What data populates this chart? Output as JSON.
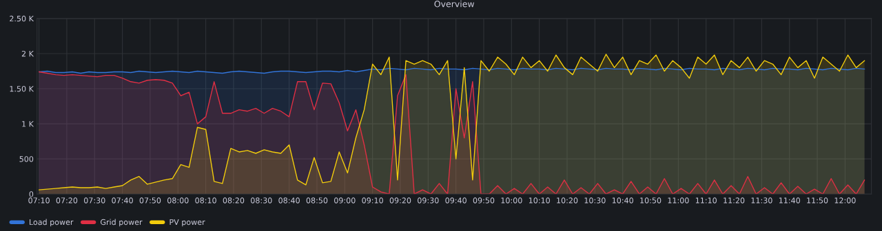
{
  "chart_data": {
    "type": "area",
    "title": "Overview",
    "x": [
      7.1667,
      7.2167,
      7.2667,
      7.3167,
      7.3667,
      7.4167,
      7.4667,
      7.5167,
      7.5667,
      7.6167,
      7.6667,
      7.7167,
      7.7667,
      7.8167,
      7.8667,
      7.9167,
      7.9667,
      8.0167,
      8.0667,
      8.1167,
      8.1667,
      8.2167,
      8.2667,
      8.3167,
      8.3667,
      8.4167,
      8.4667,
      8.5167,
      8.5667,
      8.6167,
      8.6667,
      8.7167,
      8.7667,
      8.8167,
      8.8667,
      8.9167,
      8.9667,
      9.0167,
      9.0667,
      9.1167,
      9.1667,
      9.2167,
      9.2667,
      9.3167,
      9.3667,
      9.4167,
      9.4667,
      9.5167,
      9.5667,
      9.6167,
      9.6667,
      9.7167,
      9.7667,
      9.8167,
      9.8667,
      9.9167,
      9.9667,
      10.0167,
      10.0667,
      10.1167,
      10.1667,
      10.2167,
      10.2667,
      10.3167,
      10.3667,
      10.4167,
      10.4667,
      10.5167,
      10.5667,
      10.6167,
      10.6667,
      10.7167,
      10.7667,
      10.8167,
      10.8667,
      10.9167,
      10.9667,
      11.0167,
      11.0667,
      11.1167,
      11.1667,
      11.2167,
      11.2667,
      11.3167,
      11.3667,
      11.4167,
      11.4667,
      11.5167,
      11.5667,
      11.6167,
      11.6667,
      11.7167,
      11.7667,
      11.8167,
      11.8667,
      11.9167,
      11.9667,
      12.0167,
      12.0667,
      12.1167
    ],
    "series": [
      {
        "name": "Load power",
        "color": "#3274d9",
        "values": [
          1740,
          1750,
          1730,
          1730,
          1740,
          1720,
          1740,
          1730,
          1730,
          1740,
          1740,
          1730,
          1750,
          1740,
          1730,
          1740,
          1750,
          1740,
          1730,
          1750,
          1740,
          1730,
          1720,
          1740,
          1750,
          1740,
          1730,
          1720,
          1740,
          1750,
          1750,
          1740,
          1730,
          1740,
          1750,
          1750,
          1740,
          1760,
          1740,
          1760,
          1780,
          1770,
          1790,
          1780,
          1770,
          1790,
          1780,
          1770,
          1790,
          1780,
          1780,
          1770,
          1790,
          1780,
          1770,
          1790,
          1780,
          1770,
          1790,
          1780,
          1780,
          1770,
          1790,
          1780,
          1770,
          1790,
          1780,
          1770,
          1790,
          1780,
          1780,
          1770,
          1790,
          1780,
          1770,
          1790,
          1780,
          1770,
          1790,
          1780,
          1780,
          1770,
          1790,
          1780,
          1770,
          1790,
          1780,
          1770,
          1790,
          1780,
          1780,
          1770,
          1790,
          1780,
          1770,
          1790,
          1780,
          1770,
          1790,
          1780
        ]
      },
      {
        "name": "Grid power",
        "color": "#e02f44",
        "values": [
          1740,
          1720,
          1700,
          1690,
          1700,
          1690,
          1680,
          1670,
          1690,
          1690,
          1650,
          1600,
          1580,
          1620,
          1630,
          1620,
          1580,
          1400,
          1450,
          1000,
          1100,
          1600,
          1150,
          1150,
          1200,
          1180,
          1220,
          1150,
          1220,
          1180,
          1100,
          1600,
          1600,
          1200,
          1580,
          1570,
          1300,
          900,
          1200,
          700,
          100,
          30,
          0,
          1400,
          1700,
          0,
          60,
          0,
          150,
          0,
          1500,
          800,
          1600,
          0,
          0,
          120,
          0,
          80,
          0,
          150,
          0,
          100,
          0,
          200,
          0,
          90,
          0,
          150,
          0,
          60,
          0,
          180,
          0,
          100,
          0,
          220,
          0,
          80,
          0,
          150,
          0,
          200,
          0,
          120,
          0,
          250,
          0,
          90,
          0,
          160,
          0,
          110,
          0,
          70,
          0,
          220,
          0,
          130,
          0,
          200
        ]
      },
      {
        "name": "PV power",
        "color": "#f2cc0c",
        "values": [
          60,
          70,
          80,
          90,
          100,
          90,
          90,
          100,
          80,
          100,
          120,
          200,
          250,
          140,
          170,
          200,
          220,
          420,
          380,
          950,
          920,
          180,
          150,
          650,
          600,
          620,
          580,
          630,
          600,
          580,
          700,
          200,
          130,
          520,
          160,
          180,
          600,
          300,
          800,
          1200,
          1850,
          1700,
          1950,
          200,
          1900,
          1850,
          1900,
          1850,
          1700,
          1900,
          500,
          1800,
          200,
          1900,
          1750,
          1950,
          1850,
          1700,
          1950,
          1800,
          1900,
          1750,
          1980,
          1800,
          1700,
          1950,
          1850,
          1750,
          1990,
          1800,
          1950,
          1700,
          1900,
          1850,
          1980,
          1750,
          1900,
          1800,
          1650,
          1950,
          1850,
          1980,
          1700,
          1900,
          1800,
          1950,
          1750,
          1900,
          1850,
          1700,
          1950,
          1800,
          1900,
          1650,
          1950,
          1850,
          1750,
          1980,
          1800,
          1900
        ]
      }
    ],
    "xlim": [
      7.155,
      12.158
    ],
    "xticks": [
      {
        "value": 7.1667,
        "label": "07:10"
      },
      {
        "value": 7.3333,
        "label": "07:20"
      },
      {
        "value": 7.5,
        "label": "07:30"
      },
      {
        "value": 7.6667,
        "label": "07:40"
      },
      {
        "value": 7.8333,
        "label": "07:50"
      },
      {
        "value": 8,
        "label": "08:00"
      },
      {
        "value": 8.1667,
        "label": "08:10"
      },
      {
        "value": 8.3333,
        "label": "08:20"
      },
      {
        "value": 8.5,
        "label": "08:30"
      },
      {
        "value": 8.6667,
        "label": "08:40"
      },
      {
        "value": 8.8333,
        "label": "08:50"
      },
      {
        "value": 9,
        "label": "09:00"
      },
      {
        "value": 9.1667,
        "label": "09:10"
      },
      {
        "value": 9.3333,
        "label": "09:20"
      },
      {
        "value": 9.5,
        "label": "09:30"
      },
      {
        "value": 9.6667,
        "label": "09:40"
      },
      {
        "value": 9.8333,
        "label": "09:50"
      },
      {
        "value": 10,
        "label": "10:00"
      },
      {
        "value": 10.1667,
        "label": "10:10"
      },
      {
        "value": 10.3333,
        "label": "10:20"
      },
      {
        "value": 10.5,
        "label": "10:30"
      },
      {
        "value": 10.6667,
        "label": "10:40"
      },
      {
        "value": 10.8333,
        "label": "10:50"
      },
      {
        "value": 11,
        "label": "11:00"
      },
      {
        "value": 11.1667,
        "label": "11:10"
      },
      {
        "value": 11.3333,
        "label": "11:20"
      },
      {
        "value": 11.5,
        "label": "11:30"
      },
      {
        "value": 11.6667,
        "label": "11:40"
      },
      {
        "value": 11.8333,
        "label": "11:50"
      },
      {
        "value": 12,
        "label": "12:00"
      }
    ],
    "ylim": [
      0,
      2500
    ],
    "yticks": [
      0,
      500,
      {
        "value": 1000,
        "label": "1 K"
      },
      {
        "value": 1500,
        "label": "1.50 K"
      },
      {
        "value": 2000,
        "label": "2 K"
      },
      {
        "value": 2500,
        "label": "2.50 K"
      }
    ],
    "grid": true,
    "legend": "bottom left"
  }
}
